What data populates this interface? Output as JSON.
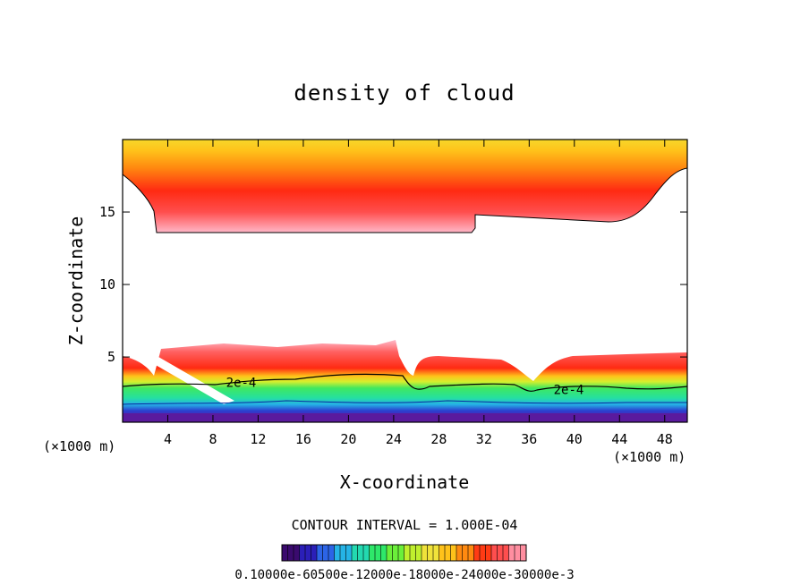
{
  "chart_data": {
    "type": "heatmap",
    "title": "density of cloud",
    "xlabel": "X-coordinate",
    "ylabel": "Z-coordinate",
    "x_unit": "(×1000 m)",
    "y_unit": "(×1000 m)",
    "xlim": [
      0,
      50
    ],
    "ylim": [
      0.5,
      20
    ],
    "x_ticks": [
      4,
      8,
      12,
      16,
      20,
      24,
      28,
      32,
      36,
      40,
      44,
      48
    ],
    "y_ticks": [
      5,
      10,
      15
    ],
    "contour_interval_text": "CONTOUR INTERVAL = 1.000E-04",
    "contour_labels": [
      {
        "text": "2e-4",
        "x": 10.5,
        "z": 3.0
      },
      {
        "text": "2e-4",
        "x": 39.5,
        "z": 2.5
      }
    ],
    "colorbar": {
      "labels_text": "0.10000e-60500e-12000e-18000e-24000e-30000e-3",
      "colors": [
        "#3a0a6e",
        "#2b1fb8",
        "#2c64e6",
        "#25b3e6",
        "#23d9b0",
        "#2ee86a",
        "#6bf03a",
        "#c0ef2e",
        "#f0e23a",
        "#ffc21a",
        "#ff8a10",
        "#ff3b14",
        "#ff4e4e",
        "#ff8ea0"
      ]
    },
    "layers": [
      {
        "name": "upper cloud",
        "x_range": [
          0,
          50
        ],
        "z_base_range": [
          13.4,
          18.0
        ],
        "z_top": 20
      },
      {
        "name": "lower cloud",
        "x_range": [
          0,
          50
        ],
        "z_base_range": [
          0.5,
          1.0
        ],
        "z_top_range": [
          4.5,
          6.0
        ]
      }
    ]
  }
}
